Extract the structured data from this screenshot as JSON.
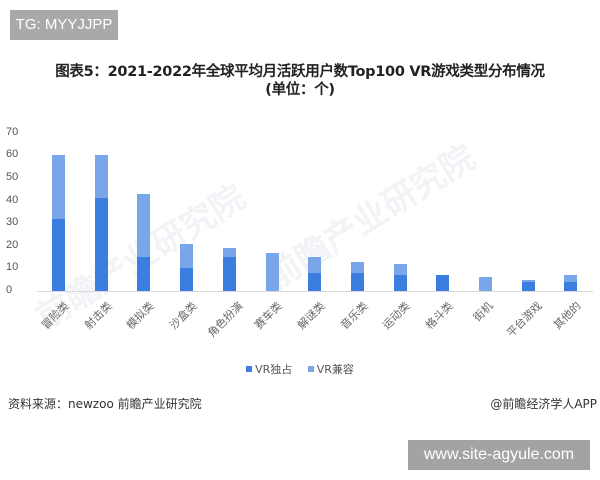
{
  "badge_top": "TG: MYYJJPP",
  "title_line1": "图表5：2021-2022年全球平均月活跃用户数Top100 VR游戏类型分布情况",
  "title_line2": "(单位：个)",
  "watermark": "前瞻产业研究院",
  "legend": {
    "exclusive": "VR独占",
    "compatible": "VR兼容"
  },
  "source": "资料来源：newzoo 前瞻产业研究院",
  "credit": "@前瞻经济学人APP",
  "badge_bottom": "www.site-agyule.com",
  "colors": {
    "exclusive": "#3c7de0",
    "compatible": "#78a6e8"
  },
  "chart_data": {
    "type": "bar",
    "stacked": true,
    "title": "图表5：2021-2022年全球平均月活跃用户数Top100 VR游戏类型分布情况 (单位：个)",
    "xlabel": "",
    "ylabel": "",
    "ylim": [
      0,
      70
    ],
    "yticks": [
      0,
      10,
      20,
      30,
      40,
      50,
      60,
      70
    ],
    "grid": false,
    "legend_position": "bottom",
    "categories": [
      "冒险类",
      "射击类",
      "模拟类",
      "沙盒类",
      "角色扮演",
      "赛车类",
      "解谜类",
      "音乐类",
      "运动类",
      "格斗类",
      "街机",
      "平台游戏",
      "其他的"
    ],
    "series": [
      {
        "name": "VR独占",
        "values": [
          32,
          41,
          15,
          10,
          15,
          0,
          8,
          8,
          7,
          7,
          0,
          4,
          4
        ]
      },
      {
        "name": "VR兼容",
        "values": [
          28,
          19,
          28,
          11,
          4,
          17,
          7,
          5,
          5,
          0,
          6,
          1,
          3
        ]
      }
    ]
  }
}
